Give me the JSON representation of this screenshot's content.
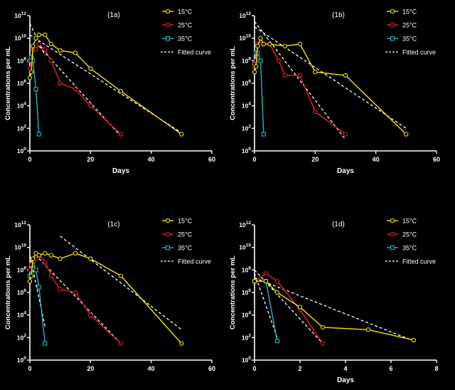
{
  "colors": {
    "background": "#000000",
    "axis": "#ffffff",
    "s15": "#f2e600",
    "s25": "#e8202a",
    "s35": "#22b8c8",
    "fit": "#ffffff"
  },
  "legend_labels": [
    "15°C",
    "25°C",
    "35°C",
    "Fitted curve"
  ],
  "chart_data": [
    {
      "type": "line",
      "panel_label": "(1a)",
      "xlabel": "Days",
      "ylabel": "Concentrations per mL",
      "xlim": [
        0,
        60
      ],
      "ylim_log10": [
        0,
        12
      ],
      "y_scale": "log",
      "x_ticks": [
        "0",
        "20",
        "40",
        "60"
      ],
      "y_ticks": [
        {
          "base": "10",
          "exp": "0"
        },
        {
          "base": "10",
          "exp": "2"
        },
        {
          "base": "10",
          "exp": "4"
        },
        {
          "base": "10",
          "exp": "6"
        },
        {
          "base": "10",
          "exp": "8"
        },
        {
          "base": "10",
          "exp": "10"
        },
        {
          "base": "10",
          "exp": "12"
        }
      ],
      "legend": "top-right",
      "grid": false,
      "series": [
        {
          "name": "15°C",
          "marker": "circle",
          "x": [
            0,
            0.5,
            1,
            2,
            3,
            5,
            7,
            10,
            15,
            20,
            30,
            50
          ],
          "y": [
            3000000.0,
            10000000.0,
            2000000000.0,
            10000000000.0,
            20000000000.0,
            20000000000.0,
            3000000000.0,
            800000000.0,
            500000000.0,
            20000000.0,
            200000.0,
            30
          ]
        },
        {
          "name": "25°C",
          "marker": "circle",
          "x": [
            0,
            0.5,
            1,
            2,
            3,
            5,
            7,
            10,
            15,
            20,
            30
          ],
          "y": [
            20000000.0,
            100000000.0,
            1000000000.0,
            1000000000.0,
            3000000000.0,
            1000000000.0,
            100000000.0,
            1000000.0,
            300000.0,
            10000.0,
            30
          ]
        },
        {
          "name": "35°C",
          "marker": "square",
          "x": [
            0,
            0.5,
            1,
            2,
            3
          ],
          "y": [
            100000000.0,
            200000000.0,
            100000000.0,
            300000.0,
            30
          ]
        }
      ],
      "fitted": [
        {
          "x": [
            0,
            5
          ],
          "y": [
            200000000000.0,
            300000000.0
          ]
        },
        {
          "x": [
            3,
            30
          ],
          "y": [
            2000000000.0,
            20.0
          ]
        },
        {
          "x": [
            0,
            50
          ],
          "y": [
            20000000000.0,
            40.0
          ]
        }
      ]
    },
    {
      "type": "line",
      "panel_label": "(1b)",
      "xlabel": "Days",
      "ylabel": "Concentrations per mL",
      "xlim": [
        0,
        60
      ],
      "ylim_log10": [
        0,
        12
      ],
      "y_scale": "log",
      "x_ticks": [
        "0",
        "20",
        "40",
        "60"
      ],
      "y_ticks": [
        {
          "base": "10",
          "exp": "0"
        },
        {
          "base": "10",
          "exp": "2"
        },
        {
          "base": "10",
          "exp": "4"
        },
        {
          "base": "10",
          "exp": "6"
        },
        {
          "base": "10",
          "exp": "8"
        },
        {
          "base": "10",
          "exp": "10"
        },
        {
          "base": "10",
          "exp": "12"
        }
      ],
      "legend": "top-right",
      "grid": false,
      "series": [
        {
          "name": "15°C",
          "marker": "circle",
          "x": [
            0,
            0.5,
            1,
            2,
            3,
            5,
            10,
            15,
            20,
            30,
            50
          ],
          "y": [
            10000000.0,
            30000000.0,
            2000000000.0,
            10000000000.0,
            3000000000.0,
            3000000000.0,
            2000000000.0,
            3000000000.0,
            10000000.0,
            5000000.0,
            30
          ]
        },
        {
          "name": "25°C",
          "marker": "circle",
          "x": [
            0,
            0.5,
            1,
            2,
            3,
            5,
            8,
            10,
            15,
            20,
            30
          ],
          "y": [
            30000000.0,
            100000000.0,
            3000000000.0,
            3000000000.0,
            3000000000.0,
            3000000000.0,
            100000000.0,
            5000000.0,
            5000000.0,
            3000.0,
            30
          ]
        },
        {
          "name": "35°C",
          "marker": "square",
          "x": [
            0,
            0.5,
            1,
            2,
            3
          ],
          "y": [
            50000000.0,
            500000000.0,
            500000000.0,
            100000000.0,
            30
          ]
        }
      ],
      "fitted": [
        {
          "x": [
            0,
            30
          ],
          "y": [
            300000000000.0,
            10.0
          ]
        },
        {
          "x": [
            0,
            50
          ],
          "y": [
            100000000000.0,
            100.0
          ]
        }
      ]
    },
    {
      "type": "line",
      "panel_label": "(1c)",
      "xlabel": "",
      "ylabel": "Concentrations per mL",
      "xlim": [
        0,
        60
      ],
      "ylim_log10": [
        0,
        12
      ],
      "y_scale": "log",
      "x_ticks": [
        "0",
        "20",
        "40",
        "60"
      ],
      "y_ticks": [
        {
          "base": "10",
          "exp": "0"
        },
        {
          "base": "10",
          "exp": "2"
        },
        {
          "base": "10",
          "exp": "4"
        },
        {
          "base": "10",
          "exp": "6"
        },
        {
          "base": "10",
          "exp": "8"
        },
        {
          "base": "10",
          "exp": "10"
        },
        {
          "base": "10",
          "exp": "12"
        }
      ],
      "legend": "top-right",
      "grid": false,
      "series": [
        {
          "name": "15°C",
          "marker": "circle",
          "x": [
            0,
            0.5,
            1,
            2,
            3,
            5,
            7,
            10,
            15,
            20,
            30,
            50
          ],
          "y": [
            10000000.0,
            30000000.0,
            1000000000.0,
            3000000000.0,
            2000000000.0,
            3000000000.0,
            2000000000.0,
            1000000000.0,
            3000000000.0,
            1000000000.0,
            30000000.0,
            30
          ]
        },
        {
          "name": "25°C",
          "marker": "circle",
          "x": [
            0,
            0.5,
            1,
            2,
            3,
            5,
            7,
            10,
            15,
            20,
            30
          ],
          "y": [
            100000000.0,
            300000000.0,
            1000000000.0,
            1000000000.0,
            2000000000.0,
            500000000.0,
            30000000.0,
            2000000.0,
            1000000.0,
            10000.0,
            30
          ]
        },
        {
          "name": "35°C",
          "marker": "square",
          "x": [
            0,
            0.5,
            1,
            2,
            3,
            5
          ],
          "y": [
            30000000.0,
            300000000.0,
            300000000.0,
            100000000.0,
            3000000.0,
            30
          ]
        }
      ],
      "fitted": [
        {
          "x": [
            0,
            5
          ],
          "y": [
            2000000000.0,
            1000.0
          ]
        },
        {
          "x": [
            3,
            30
          ],
          "y": [
            1000000000.0,
            30.0
          ]
        },
        {
          "x": [
            10,
            50
          ],
          "y": [
            100000000000.0,
            500.0
          ]
        }
      ]
    },
    {
      "type": "line",
      "panel_label": "(1d)",
      "xlabel": "Days",
      "ylabel": "Concentrations per mL",
      "xlim": [
        0,
        8
      ],
      "ylim_log10": [
        0,
        12
      ],
      "y_scale": "log",
      "x_ticks": [
        "0",
        "2",
        "4",
        "6",
        "8"
      ],
      "y_ticks": [
        {
          "base": "10",
          "exp": "0"
        },
        {
          "base": "10",
          "exp": "2"
        },
        {
          "base": "10",
          "exp": "4"
        },
        {
          "base": "10",
          "exp": "6"
        },
        {
          "base": "10",
          "exp": "8"
        },
        {
          "base": "10",
          "exp": "10"
        },
        {
          "base": "10",
          "exp": "12"
        }
      ],
      "legend": "top-right",
      "grid": false,
      "series": [
        {
          "name": "15°C",
          "marker": "circle",
          "x": [
            0,
            0.5,
            1,
            2,
            3,
            5,
            7
          ],
          "y": [
            10000000.0,
            10000000.0,
            1000000.0,
            50000.0,
            800.0,
            500.0,
            60.0
          ]
        },
        {
          "name": "25°C",
          "marker": "circle",
          "x": [
            0,
            0.5,
            1,
            2,
            3
          ],
          "y": [
            10000000.0,
            50000000.0,
            10000000.0,
            30000.0,
            30.0
          ]
        },
        {
          "name": "35°C",
          "marker": "square",
          "x": [
            0,
            0.5,
            1
          ],
          "y": [
            10000000.0,
            10000000.0,
            50.0
          ]
        }
      ],
      "fitted": [
        {
          "x": [
            0,
            3
          ],
          "y": [
            100000000.0,
            30.0
          ]
        },
        {
          "x": [
            0,
            7
          ],
          "y": [
            20000000.0,
            50.0
          ]
        },
        {
          "x": [
            0,
            1
          ],
          "y": [
            50000000.0,
            100.0
          ]
        }
      ]
    }
  ]
}
